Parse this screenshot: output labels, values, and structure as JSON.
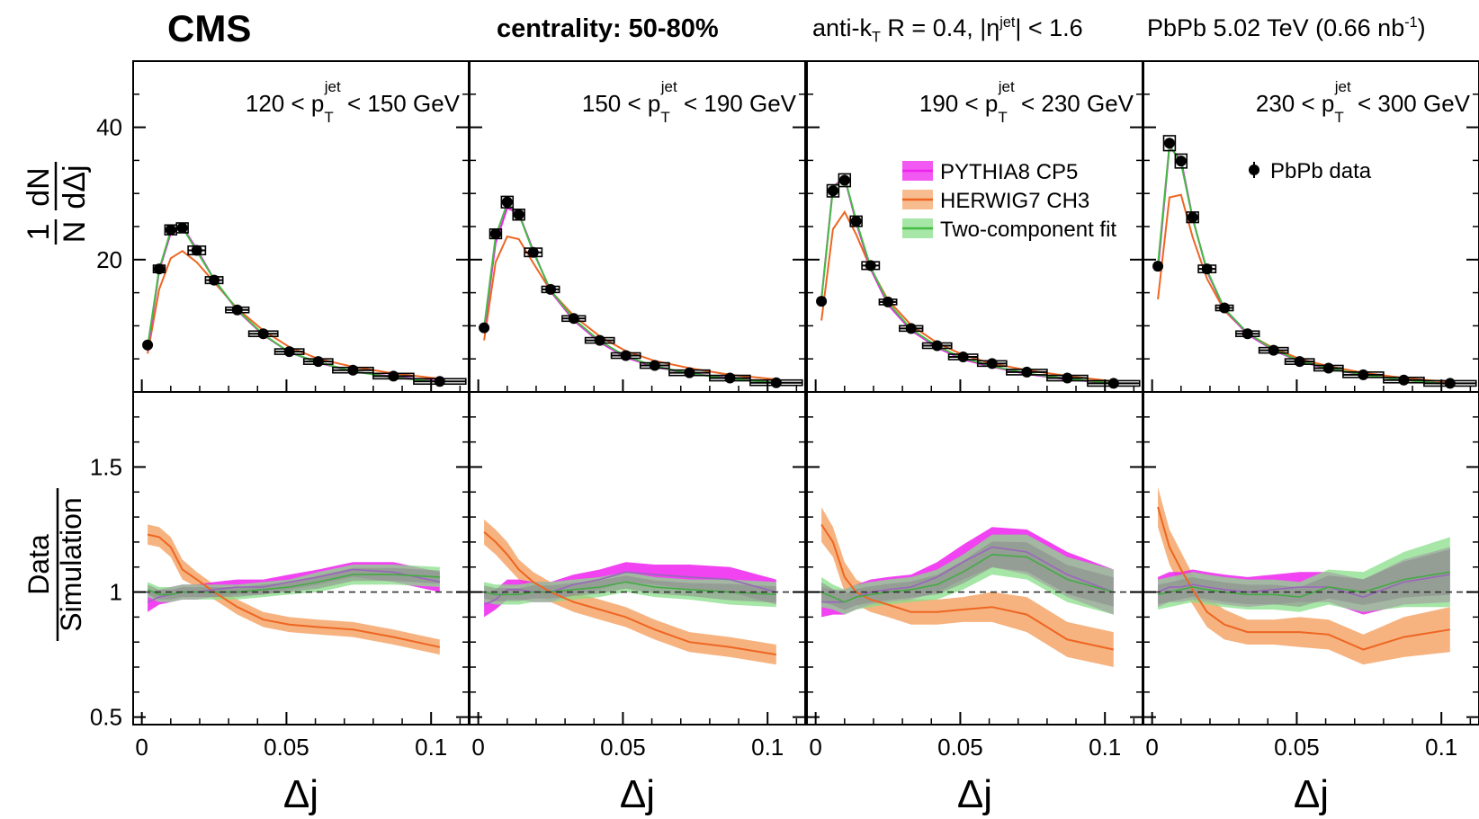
{
  "header": {
    "experiment": "CMS",
    "centrality": "centrality: 50-80%",
    "jet_selection_pre": "anti-k",
    "jet_selection_sub": "T",
    "jet_selection_mid": " R = 0.4, |η",
    "jet_selection_sup": "jet",
    "jet_selection_post": "| < 1.6",
    "collision_pre": "PbPb 5.02 TeV (0.66 nb",
    "collision_sup": "-1",
    "collision_post": ")"
  },
  "colors": {
    "pythia": "#ee22ee",
    "herwig": "#ee6622",
    "herwig_band": "#f4a66a",
    "twocomp": "#55cc55",
    "twocomp_band": "#88dd88",
    "overlap": "#8a8a8a",
    "data": "#000000"
  },
  "chart_data": {
    "type": "line",
    "xlabel": "Δj",
    "upper_ylabel_num": "1",
    "upper_ylabel_den": "N",
    "upper_ylabel_num2": "dN",
    "upper_ylabel_den2": "dΔj",
    "lower_ylabel_num": "Data",
    "lower_ylabel_den": "Simulation",
    "xlim": [
      -0.003,
      0.113
    ],
    "upper_ylim": [
      0,
      50
    ],
    "lower_ylim": [
      0.47,
      1.8
    ],
    "x_ticks": [
      0,
      0.05,
      0.1
    ],
    "x_tick_labels": [
      "0",
      "0.05",
      "0.1"
    ],
    "upper_y_ticks": [
      20,
      40
    ],
    "upper_y_tick_labels": [
      "20",
      "40"
    ],
    "lower_y_ticks": [
      0.5,
      1,
      1.5
    ],
    "lower_y_tick_labels": [
      "0.5",
      "1",
      "1.5"
    ],
    "legend": [
      {
        "label": "PYTHIA8 CP5",
        "series": "pythia"
      },
      {
        "label": "HERWIG7 CH3",
        "series": "herwig"
      },
      {
        "label": "Two-component fit",
        "series": "twocomp"
      },
      {
        "label": "PbPb data",
        "series": "data"
      }
    ],
    "panels": [
      {
        "label_pre": "120 < p",
        "label_sub": "T",
        "label_sup": "jet",
        "label_post": " < 150 GeV",
        "x": [
          0.002,
          0.006,
          0.01,
          0.014,
          0.019,
          0.025,
          0.033,
          0.042,
          0.051,
          0.061,
          0.073,
          0.087,
          0.103
        ],
        "x_halfwidth": [
          0.001,
          0.002,
          0.002,
          0.002,
          0.003,
          0.003,
          0.004,
          0.005,
          0.005,
          0.005,
          0.007,
          0.007,
          0.009
        ],
        "data": [
          7.1,
          18.6,
          24.5,
          24.8,
          21.4,
          16.9,
          12.4,
          8.8,
          6.1,
          4.6,
          3.3,
          2.4,
          1.6
        ],
        "pythia": [
          6.2,
          18.3,
          24.0,
          25.0,
          21.6,
          17.0,
          12.3,
          8.6,
          6.0,
          4.4,
          3.1,
          2.3,
          1.6
        ],
        "herwig": [
          5.8,
          15.5,
          20.2,
          21.3,
          19.6,
          16.6,
          12.6,
          9.3,
          6.8,
          5.0,
          3.8,
          2.8,
          2.0
        ],
        "twocomp": [
          6.9,
          18.5,
          24.4,
          24.9,
          21.3,
          17.0,
          12.4,
          8.7,
          6.0,
          4.5,
          3.1,
          2.2,
          1.5
        ],
        "ratio_pythia": [
          0.96,
          0.98,
          0.99,
          1.0,
          1.0,
          1.01,
          1.02,
          1.02,
          1.04,
          1.06,
          1.09,
          1.08,
          1.04
        ],
        "ratio_pythia_err": [
          0.04,
          0.03,
          0.03,
          0.03,
          0.03,
          0.03,
          0.03,
          0.03,
          0.03,
          0.03,
          0.03,
          0.04,
          0.04
        ],
        "ratio_herwig": [
          1.23,
          1.22,
          1.18,
          1.09,
          1.05,
          1.0,
          0.94,
          0.89,
          0.87,
          0.86,
          0.85,
          0.82,
          0.78
        ],
        "ratio_herwig_err": [
          0.04,
          0.04,
          0.04,
          0.04,
          0.03,
          0.03,
          0.03,
          0.03,
          0.03,
          0.03,
          0.03,
          0.03,
          0.03
        ],
        "ratio_twocomp": [
          1.01,
          0.99,
          0.99,
          1.0,
          1.0,
          1.0,
          1.0,
          1.01,
          1.02,
          1.04,
          1.07,
          1.07,
          1.06
        ],
        "ratio_twocomp_err": [
          0.03,
          0.03,
          0.03,
          0.03,
          0.03,
          0.03,
          0.03,
          0.03,
          0.03,
          0.04,
          0.04,
          0.04,
          0.04
        ]
      },
      {
        "label_pre": "150 < p",
        "label_sub": "T",
        "label_sup": "jet",
        "label_post": " < 190 GeV",
        "x": [
          0.002,
          0.006,
          0.01,
          0.014,
          0.019,
          0.025,
          0.033,
          0.042,
          0.051,
          0.061,
          0.073,
          0.087,
          0.103
        ],
        "x_halfwidth": [
          0.001,
          0.002,
          0.002,
          0.002,
          0.003,
          0.003,
          0.004,
          0.005,
          0.005,
          0.005,
          0.007,
          0.007,
          0.009
        ],
        "data": [
          9.7,
          23.9,
          28.7,
          26.8,
          21.1,
          15.5,
          11.1,
          7.8,
          5.5,
          4.0,
          2.9,
          2.1,
          1.4
        ],
        "pythia": [
          9.2,
          22.5,
          27.8,
          27.0,
          21.4,
          15.2,
          10.8,
          7.5,
          5.2,
          3.8,
          2.8,
          2.1,
          1.4
        ],
        "herwig": [
          7.8,
          19.6,
          23.5,
          23.1,
          19.5,
          15.3,
          11.5,
          8.4,
          6.2,
          4.7,
          3.6,
          2.6,
          1.9
        ],
        "twocomp": [
          9.7,
          23.5,
          28.5,
          26.9,
          21.2,
          15.4,
          11.0,
          7.7,
          5.4,
          3.9,
          2.8,
          2.0,
          1.4
        ],
        "ratio_pythia": [
          0.95,
          0.97,
          1.01,
          1.01,
          1.0,
          1.0,
          1.03,
          1.05,
          1.08,
          1.07,
          1.06,
          1.05,
          1.0
        ],
        "ratio_pythia_err": [
          0.05,
          0.04,
          0.04,
          0.04,
          0.04,
          0.04,
          0.04,
          0.04,
          0.04,
          0.04,
          0.05,
          0.05,
          0.05
        ],
        "ratio_herwig": [
          1.24,
          1.2,
          1.15,
          1.09,
          1.04,
          1.0,
          0.96,
          0.93,
          0.9,
          0.85,
          0.8,
          0.78,
          0.75
        ],
        "ratio_herwig_err": [
          0.05,
          0.05,
          0.05,
          0.04,
          0.04,
          0.04,
          0.04,
          0.04,
          0.04,
          0.04,
          0.04,
          0.04,
          0.04
        ],
        "ratio_twocomp": [
          1.0,
          0.99,
          0.99,
          0.99,
          1.0,
          1.0,
          1.01,
          1.02,
          1.04,
          1.02,
          1.01,
          1.0,
          0.99
        ],
        "ratio_twocomp_err": [
          0.04,
          0.04,
          0.04,
          0.04,
          0.04,
          0.04,
          0.04,
          0.04,
          0.04,
          0.04,
          0.04,
          0.05,
          0.05
        ]
      },
      {
        "label_pre": "190 < p",
        "label_sub": "T",
        "label_sup": "jet",
        "label_post": " < 230 GeV",
        "x": [
          0.002,
          0.006,
          0.01,
          0.014,
          0.019,
          0.025,
          0.033,
          0.042,
          0.051,
          0.061,
          0.073,
          0.087,
          0.103
        ],
        "x_halfwidth": [
          0.001,
          0.002,
          0.002,
          0.002,
          0.003,
          0.003,
          0.004,
          0.005,
          0.005,
          0.005,
          0.007,
          0.007,
          0.009
        ],
        "data": [
          13.7,
          30.4,
          32.0,
          25.8,
          19.1,
          13.6,
          9.6,
          7.0,
          5.3,
          4.3,
          3.0,
          2.1,
          1.3
        ],
        "pythia": [
          14.1,
          31.0,
          32.4,
          25.6,
          18.6,
          13.2,
          9.3,
          6.7,
          4.9,
          3.8,
          2.7,
          1.9,
          1.3
        ],
        "herwig": [
          10.8,
          24.6,
          27.2,
          23.8,
          18.7,
          13.9,
          10.1,
          7.4,
          5.6,
          4.3,
          3.3,
          2.4,
          1.6
        ],
        "twocomp": [
          14.0,
          30.7,
          32.5,
          25.9,
          18.9,
          13.5,
          9.5,
          6.9,
          5.1,
          3.9,
          2.8,
          2.0,
          1.3
        ],
        "ratio_pythia": [
          0.96,
          0.96,
          0.96,
          0.98,
          1.0,
          1.01,
          1.02,
          1.06,
          1.12,
          1.18,
          1.16,
          1.07,
          1.0
        ],
        "ratio_pythia_err": [
          0.06,
          0.05,
          0.05,
          0.05,
          0.05,
          0.05,
          0.05,
          0.06,
          0.07,
          0.08,
          0.09,
          0.09,
          0.09
        ],
        "ratio_herwig": [
          1.27,
          1.2,
          1.06,
          1.0,
          0.97,
          0.95,
          0.92,
          0.92,
          0.93,
          0.94,
          0.91,
          0.81,
          0.77
        ],
        "ratio_herwig_err": [
          0.07,
          0.06,
          0.06,
          0.05,
          0.05,
          0.05,
          0.05,
          0.05,
          0.05,
          0.06,
          0.07,
          0.07,
          0.07
        ],
        "ratio_twocomp": [
          1.0,
          0.98,
          0.96,
          0.98,
          0.99,
          1.0,
          1.01,
          1.03,
          1.08,
          1.15,
          1.14,
          1.05,
          1.0
        ],
        "ratio_twocomp_err": [
          0.06,
          0.05,
          0.05,
          0.05,
          0.05,
          0.05,
          0.05,
          0.06,
          0.07,
          0.08,
          0.09,
          0.09,
          0.09
        ]
      },
      {
        "label_pre": "230 < p",
        "label_sub": "T",
        "label_sup": "jet",
        "label_post": " < 300 GeV",
        "x": [
          0.002,
          0.006,
          0.01,
          0.014,
          0.019,
          0.025,
          0.033,
          0.042,
          0.051,
          0.061,
          0.073,
          0.087,
          0.103
        ],
        "x_halfwidth": [
          0.001,
          0.002,
          0.002,
          0.002,
          0.003,
          0.003,
          0.004,
          0.005,
          0.005,
          0.005,
          0.007,
          0.007,
          0.009
        ],
        "data": [
          19.0,
          37.6,
          34.9,
          26.4,
          18.6,
          12.7,
          8.8,
          6.3,
          4.6,
          3.6,
          2.6,
          1.8,
          1.3
        ],
        "pythia": [
          18.3,
          37.0,
          35.1,
          26.3,
          18.2,
          12.5,
          8.7,
          6.3,
          4.6,
          3.5,
          2.6,
          1.8,
          1.2
        ],
        "herwig": [
          14.0,
          29.4,
          29.8,
          23.4,
          17.1,
          12.3,
          8.8,
          6.6,
          5.0,
          3.9,
          2.9,
          2.1,
          1.5
        ],
        "twocomp": [
          19.2,
          37.3,
          34.6,
          26.2,
          18.4,
          12.6,
          8.9,
          6.4,
          4.7,
          3.6,
          2.6,
          1.8,
          1.2
        ],
        "ratio_pythia": [
          1.0,
          1.02,
          1.02,
          1.03,
          1.02,
          1.01,
          1.0,
          1.01,
          1.02,
          1.02,
          0.98,
          1.04,
          1.07
        ],
        "ratio_pythia_err": [
          0.06,
          0.06,
          0.06,
          0.06,
          0.06,
          0.06,
          0.06,
          0.06,
          0.06,
          0.06,
          0.07,
          0.09,
          0.11
        ],
        "ratio_herwig": [
          1.34,
          1.18,
          1.09,
          1.01,
          0.92,
          0.87,
          0.84,
          0.84,
          0.84,
          0.83,
          0.77,
          0.82,
          0.85
        ],
        "ratio_herwig_err": [
          0.08,
          0.07,
          0.07,
          0.06,
          0.06,
          0.06,
          0.05,
          0.05,
          0.06,
          0.06,
          0.06,
          0.08,
          0.09
        ],
        "ratio_twocomp": [
          0.99,
          1.0,
          1.01,
          1.02,
          1.01,
          1.0,
          0.99,
          0.99,
          0.98,
          1.02,
          1.0,
          1.05,
          1.08
        ],
        "ratio_twocomp_err": [
          0.06,
          0.06,
          0.06,
          0.06,
          0.06,
          0.06,
          0.06,
          0.06,
          0.06,
          0.07,
          0.08,
          0.11,
          0.14
        ]
      }
    ]
  }
}
